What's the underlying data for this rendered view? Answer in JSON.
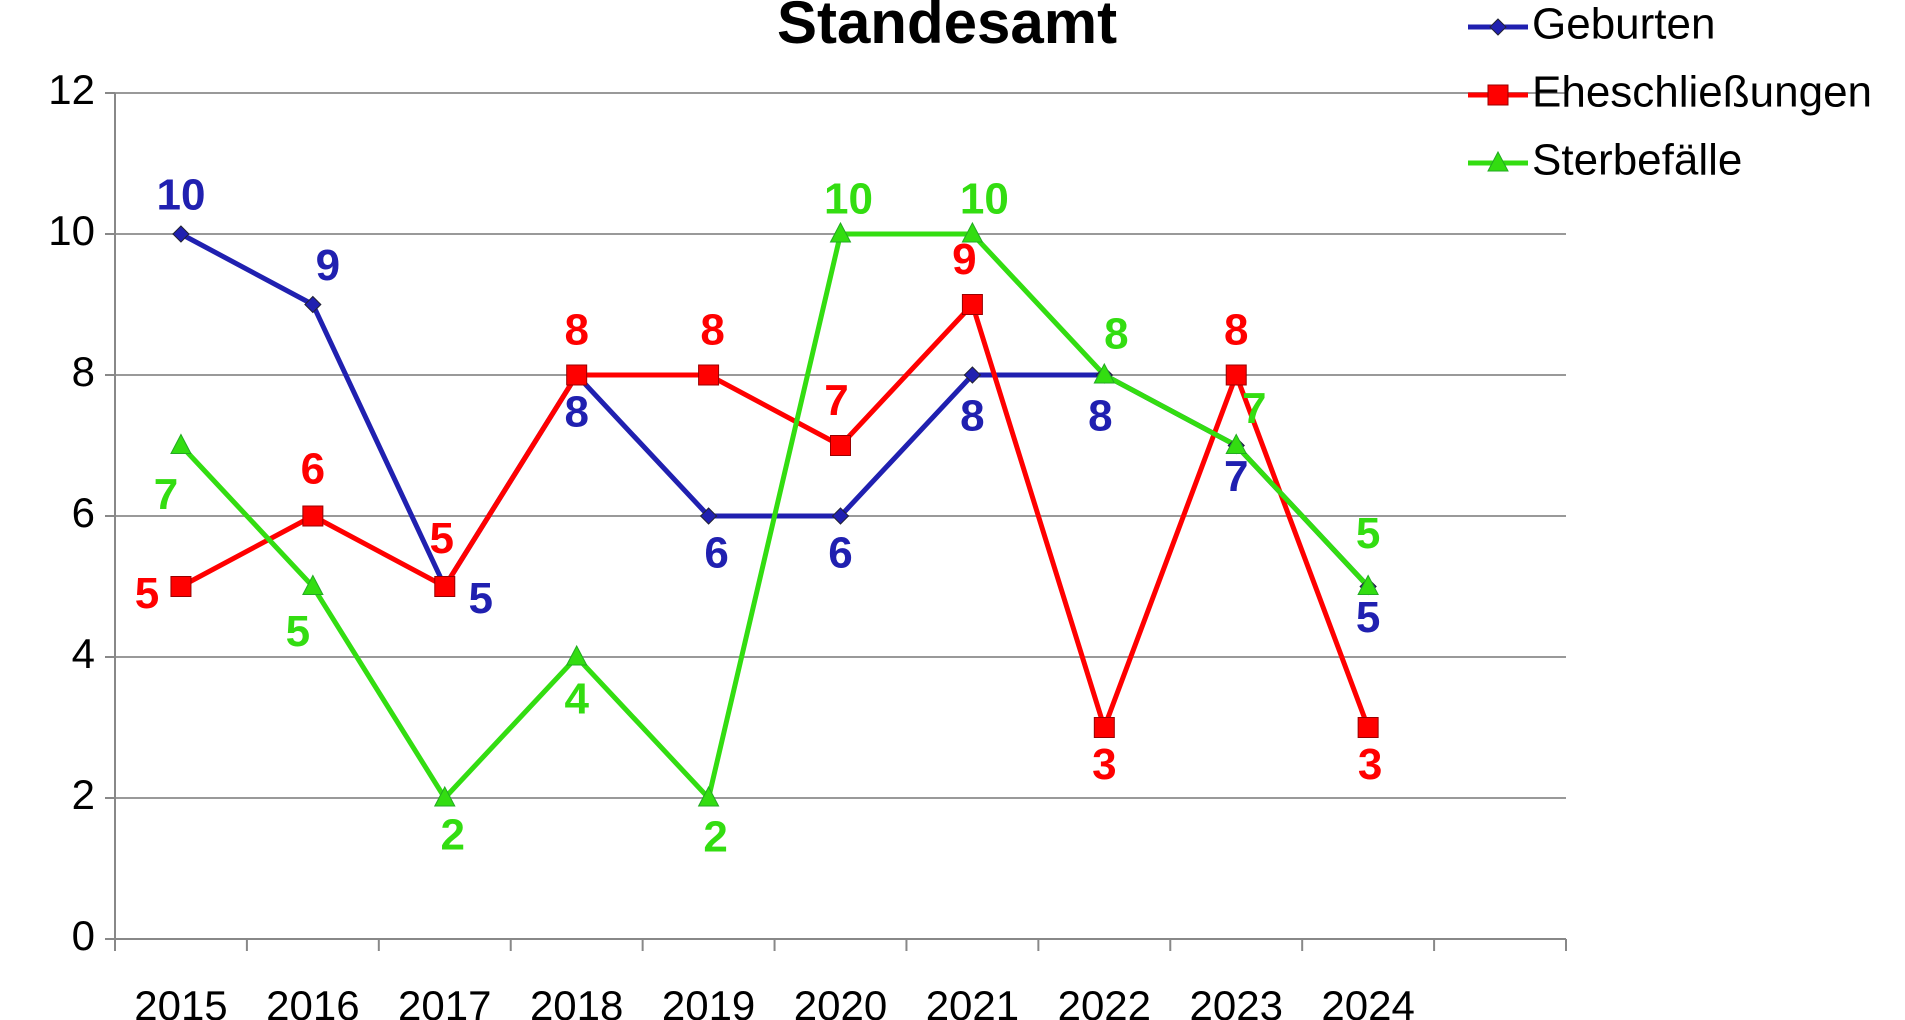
{
  "chart_data": {
    "type": "line",
    "title": "Standesamt",
    "categories": [
      "2015",
      "2016",
      "2017",
      "2018",
      "2019",
      "2020",
      "2021",
      "2022",
      "2023",
      "2024",
      null
    ],
    "series": [
      {
        "name": "Geburten",
        "color": "#2020b0",
        "marker": "diamond",
        "values": [
          10,
          9,
          5,
          8,
          6,
          6,
          8,
          8,
          7,
          5,
          null
        ]
      },
      {
        "name": "Eheschließungen",
        "color": "#ff0000",
        "marker": "square",
        "values": [
          5,
          6,
          5,
          8,
          8,
          7,
          9,
          3,
          8,
          3,
          null
        ]
      },
      {
        "name": "Sterbefälle",
        "color": "#33dd11",
        "marker": "triangle",
        "values": [
          7,
          5,
          2,
          4,
          2,
          10,
          10,
          8,
          7,
          5,
          null
        ]
      }
    ],
    "ylim": [
      0,
      12
    ],
    "yticks": [
      0,
      2,
      4,
      6,
      8,
      10,
      12
    ],
    "grid": true,
    "legend": "top-right"
  }
}
